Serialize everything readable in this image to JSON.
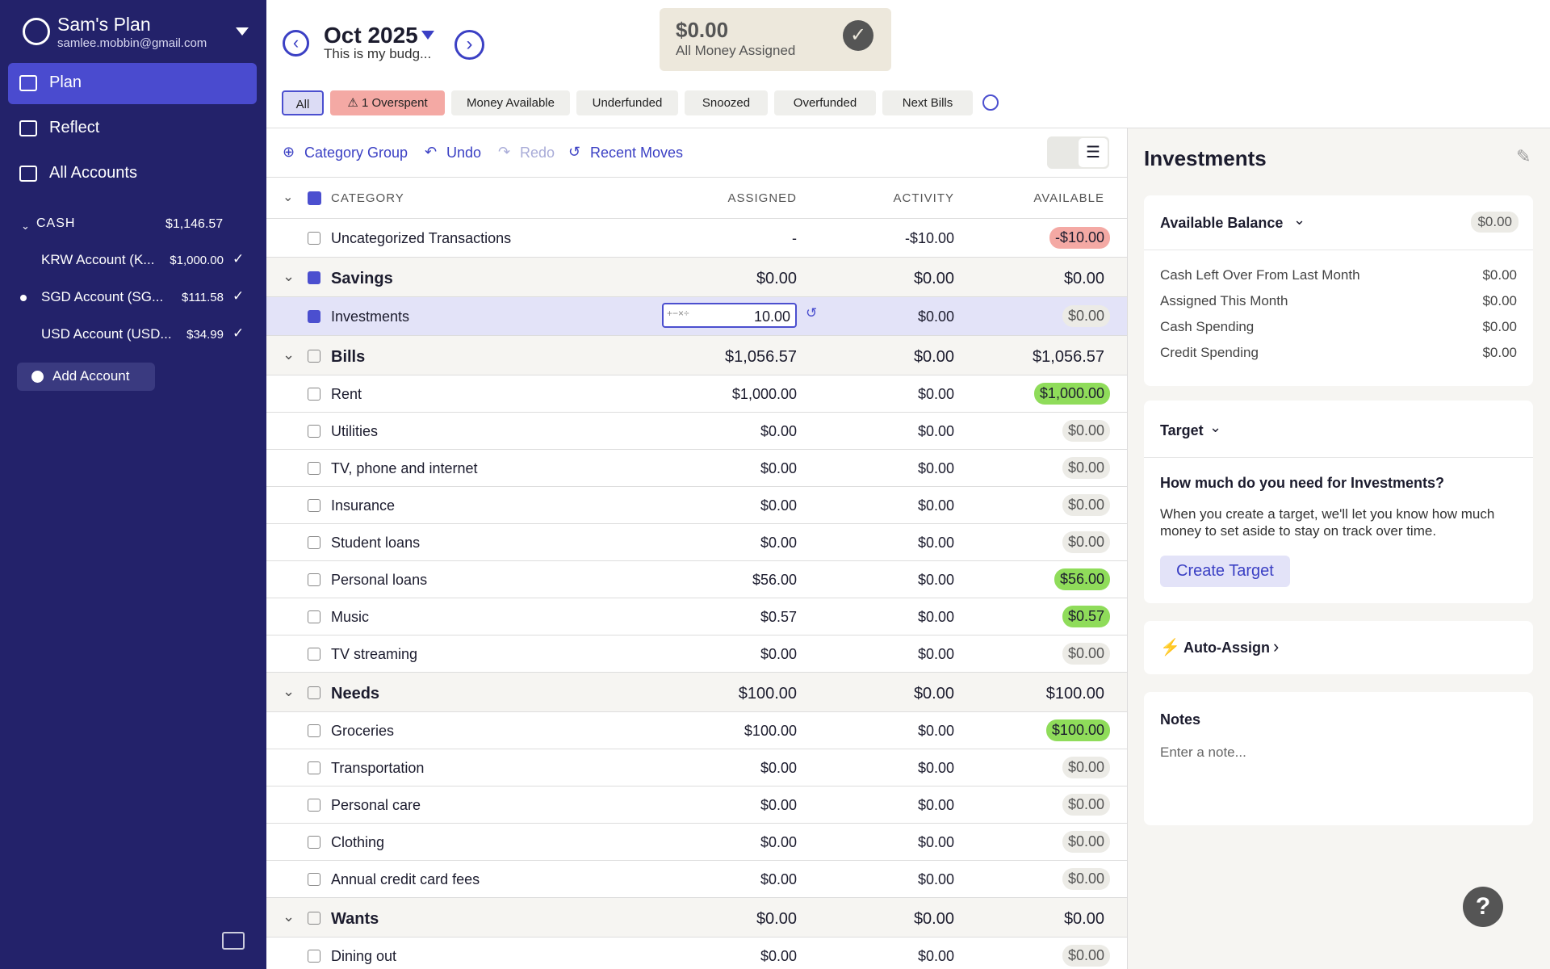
{
  "sidebar": {
    "plan_name": "Sam's Plan",
    "email": "samlee.mobbin@gmail.com",
    "nav": [
      "Plan",
      "Reflect",
      "All Accounts"
    ],
    "cash": {
      "label": "CASH",
      "total": "$1,146.57",
      "accounts": [
        {
          "name": "KRW Account (K...",
          "balance": "$1,000.00"
        },
        {
          "name": "SGD Account (SG...",
          "balance": "$111.58"
        },
        {
          "name": "USD Account (USD...",
          "balance": "$34.99"
        }
      ]
    },
    "add_account": "Add Account"
  },
  "header": {
    "month": "Oct 2025",
    "note": "This is my budg...",
    "ready_amount": "$0.00",
    "ready_label": "All Money Assigned"
  },
  "filters": [
    "All",
    "1 Overspent",
    "Money Available",
    "Underfunded",
    "Snoozed",
    "Overfunded",
    "Next Bills"
  ],
  "toolbar": [
    "Category Group",
    "Undo",
    "Redo",
    "Recent Moves"
  ],
  "table": {
    "columns": [
      "CATEGORY",
      "ASSIGNED",
      "ACTIVITY",
      "AVAILABLE"
    ],
    "rows": [
      {
        "kind": "category",
        "name": "Uncategorized Transactions",
        "assigned": "-",
        "activity": "-$10.00",
        "available": "-$10.00"
      },
      {
        "kind": "group",
        "name": "Savings",
        "assigned": "$0.00",
        "activity": "$0.00",
        "available": "$0.00"
      },
      {
        "kind": "category",
        "name": "Investments",
        "assigned": "10.00",
        "activity": "$0.00",
        "available": "$0.00"
      },
      {
        "kind": "group",
        "name": "Bills",
        "assigned": "$1,056.57",
        "activity": "$0.00",
        "available": "$1,056.57"
      },
      {
        "kind": "category",
        "name": "Rent",
        "assigned": "$1,000.00",
        "activity": "$0.00",
        "available": "$1,000.00"
      },
      {
        "kind": "category",
        "name": "Utilities",
        "assigned": "$0.00",
        "activity": "$0.00",
        "available": "$0.00"
      },
      {
        "kind": "category",
        "name": "TV, phone and internet",
        "assigned": "$0.00",
        "activity": "$0.00",
        "available": "$0.00"
      },
      {
        "kind": "category",
        "name": "Insurance",
        "assigned": "$0.00",
        "activity": "$0.00",
        "available": "$0.00"
      },
      {
        "kind": "category",
        "name": "Student loans",
        "assigned": "$0.00",
        "activity": "$0.00",
        "available": "$0.00"
      },
      {
        "kind": "category",
        "name": "Personal loans",
        "assigned": "$56.00",
        "activity": "$0.00",
        "available": "$56.00"
      },
      {
        "kind": "category",
        "name": "Music",
        "assigned": "$0.57",
        "activity": "$0.00",
        "available": "$0.57"
      },
      {
        "kind": "category",
        "name": "TV streaming",
        "assigned": "$0.00",
        "activity": "$0.00",
        "available": "$0.00"
      },
      {
        "kind": "group",
        "name": "Needs",
        "assigned": "$100.00",
        "activity": "$0.00",
        "available": "$100.00"
      },
      {
        "kind": "category",
        "name": "Groceries",
        "assigned": "$100.00",
        "activity": "$0.00",
        "available": "$100.00"
      },
      {
        "kind": "category",
        "name": "Transportation",
        "assigned": "$0.00",
        "activity": "$0.00",
        "available": "$0.00"
      },
      {
        "kind": "category",
        "name": "Personal care",
        "assigned": "$0.00",
        "activity": "$0.00",
        "available": "$0.00"
      },
      {
        "kind": "category",
        "name": "Clothing",
        "assigned": "$0.00",
        "activity": "$0.00",
        "available": "$0.00"
      },
      {
        "kind": "category",
        "name": "Annual credit card fees",
        "assigned": "$0.00",
        "activity": "$0.00",
        "available": "$0.00"
      },
      {
        "kind": "group",
        "name": "Wants",
        "assigned": "$0.00",
        "activity": "$0.00",
        "available": "$0.00"
      },
      {
        "kind": "category",
        "name": "Dining out",
        "assigned": "$0.00",
        "activity": "$0.00",
        "available": "$0.00"
      }
    ]
  },
  "inspector": {
    "title": "Investments",
    "balance_label": "Available Balance",
    "balance": "$0.00",
    "breakdown": [
      [
        "Cash Left Over From Last Month",
        "$0.00"
      ],
      [
        "Assigned This Month",
        "$0.00"
      ],
      [
        "Cash Spending",
        "$0.00"
      ],
      [
        "Credit Spending",
        "$0.00"
      ]
    ],
    "target_label": "Target",
    "target_question": "How much do you need for Investments?",
    "target_text": "When you create a target, we'll let you know how much money to set aside to stay on track over time.",
    "target_button": "Create Target",
    "auto_assign": "Auto-Assign",
    "notes_label": "Notes",
    "notes_placeholder": "Enter a note..."
  }
}
